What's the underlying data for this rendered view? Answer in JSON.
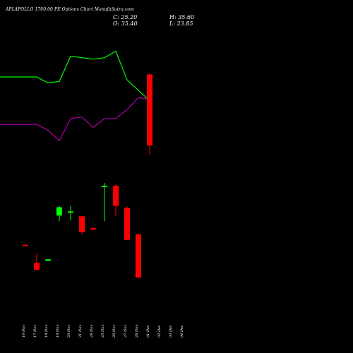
{
  "title": "APLAPOLLO 1760.00  PE Options  Chart MunafaSutra.com",
  "ohlc": {
    "close": "C: 25.20",
    "open": "O: 35.40",
    "high": "H: 35.60",
    "low": "L: 23.85"
  },
  "colors": {
    "background": "#000000",
    "up": "#00ff00",
    "down": "#ff0000",
    "upper_band": "#00ff00",
    "lower_band": "#b000b0",
    "text": "#ffffff"
  },
  "chart_data": {
    "type": "candlestick",
    "categories": [
      "14 Nov",
      "17 Nov",
      "18 Nov",
      "19 Nov",
      "20 Nov",
      "21 Nov",
      "24 Nov",
      "25 Nov",
      "26 Nov",
      "27 Nov",
      "28 Nov",
      "01 Dec",
      "02 Dec",
      "03 Dec",
      "04 Dec"
    ],
    "candles": [
      {
        "date": "14 Nov",
        "open": 10.9,
        "high": 10.9,
        "low": 10.8,
        "close": 10.8
      },
      {
        "date": "17 Nov",
        "open": 8.3,
        "high": 9.6,
        "low": 7.2,
        "close": 7.3
      },
      {
        "date": "18 Nov",
        "open": 8.7,
        "high": 8.9,
        "low": 8.6,
        "close": 8.8
      },
      {
        "date": "19 Nov",
        "open": 15.1,
        "high": 16.5,
        "low": 14.3,
        "close": 16.3
      },
      {
        "date": "20 Nov",
        "open": 15.6,
        "high": 16.5,
        "low": 14.4,
        "close": 15.7
      },
      {
        "date": "21 Nov",
        "open": 15.0,
        "high": 15.1,
        "low": 12.4,
        "close": 12.7
      },
      {
        "date": "24 Nov",
        "open": 13.3,
        "high": 13.4,
        "low": 13.0,
        "close": 13.1
      },
      {
        "date": "25 Nov",
        "open": 19.2,
        "high": 19.8,
        "low": 14.3,
        "close": 19.4
      },
      {
        "date": "26 Nov",
        "open": 19.4,
        "high": 19.6,
        "low": 15.0,
        "close": 16.5
      },
      {
        "date": "27 Nov",
        "open": 16.2,
        "high": 16.4,
        "low": 11.6,
        "close": 11.6
      },
      {
        "date": "28 Nov",
        "open": 12.4,
        "high": 12.5,
        "low": 6.1,
        "close": 6.2
      },
      {
        "date": "01 Dec",
        "open": 35.4,
        "high": 35.6,
        "low": 23.85,
        "close": 25.2
      }
    ],
    "upper_band": [
      {
        "date": "14 Nov",
        "value": 40.0
      },
      {
        "date": "17 Nov",
        "value": 40.0
      },
      {
        "date": "18 Nov",
        "value": 38.0
      },
      {
        "date": "19 Nov",
        "value": 38.5
      },
      {
        "date": "20 Nov",
        "value": 47.0
      },
      {
        "date": "21 Nov",
        "value": 46.5
      },
      {
        "date": "24 Nov",
        "value": 46.0
      },
      {
        "date": "25 Nov",
        "value": 46.5
      },
      {
        "date": "26 Nov",
        "value": 48.7
      },
      {
        "date": "27 Nov",
        "value": 39.0
      },
      {
        "date": "28 Nov",
        "value": 35.5
      },
      {
        "date": "01 Dec",
        "value": 32.0
      }
    ],
    "lower_band": [
      {
        "date": "14 Nov",
        "value": 24.0
      },
      {
        "date": "17 Nov",
        "value": 24.0
      },
      {
        "date": "18 Nov",
        "value": 22.0
      },
      {
        "date": "19 Nov",
        "value": 18.5
      },
      {
        "date": "20 Nov",
        "value": 26.0
      },
      {
        "date": "21 Nov",
        "value": 26.5
      },
      {
        "date": "24 Nov",
        "value": 23.0
      },
      {
        "date": "25 Nov",
        "value": 26.0
      },
      {
        "date": "26 Nov",
        "value": 26.0
      },
      {
        "date": "27 Nov",
        "value": 29.0
      },
      {
        "date": "28 Nov",
        "value": 33.0
      },
      {
        "date": "01 Dec",
        "value": 32.5
      }
    ],
    "grid": false,
    "legend": "none"
  }
}
